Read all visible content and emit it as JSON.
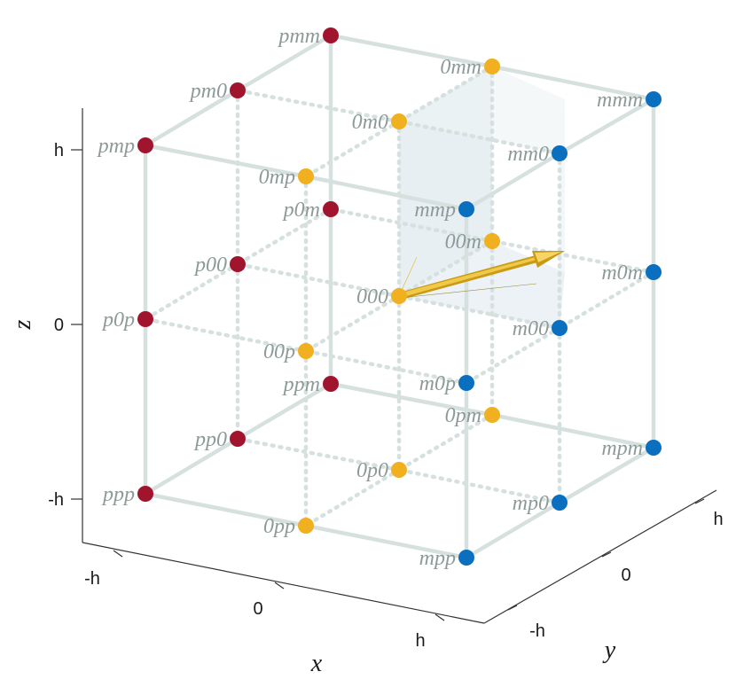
{
  "axes": {
    "x": {
      "title": "x",
      "ticks": [
        "-h",
        "0",
        "h"
      ]
    },
    "y": {
      "title": "y",
      "ticks": [
        "-h",
        "0",
        "h"
      ]
    },
    "z": {
      "title": "z",
      "ticks": [
        "-h",
        "0",
        "h"
      ]
    }
  },
  "colors": {
    "group_p": "#a0142e",
    "group_0": "#f0b020",
    "group_m": "#0a6fbf",
    "edge": "#d6e1df",
    "label": "#8c9a98",
    "arrow": "#d4a017"
  },
  "points": {
    "pmm": "pmm",
    "pm0": "pm0",
    "pmp": "pmp",
    "p0m": "p0m",
    "p00": "p00",
    "p0p": "p0p",
    "ppm": "ppm",
    "pp0": "pp0",
    "ppp": "ppp",
    "0mm": "0mm",
    "0m0": "0m0",
    "0mp": "0mp",
    "00m": "00m",
    "000": "000",
    "00p": "00p",
    "0pm": "0pm",
    "0p0": "0p0",
    "0pp": "0pp",
    "mmm": "mmm",
    "mm0": "mm0",
    "mmp": "mmp",
    "m0m": "m0m",
    "m00": "m00",
    "m0p": "m0p",
    "mpm": "mpm",
    "mp0": "mp0",
    "mpp": "mpp"
  }
}
